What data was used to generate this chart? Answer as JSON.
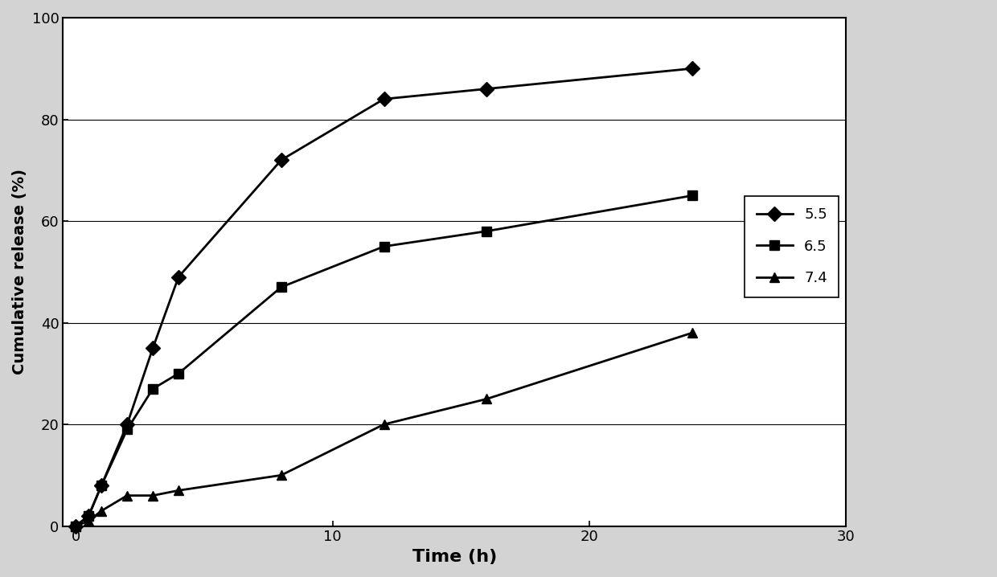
{
  "series": [
    {
      "label": "5.5",
      "marker": "D",
      "x": [
        0,
        0.5,
        1,
        2,
        3,
        4,
        8,
        12,
        16,
        24
      ],
      "y": [
        0,
        2,
        8,
        20,
        35,
        49,
        72,
        84,
        86,
        90
      ]
    },
    {
      "label": "6.5",
      "marker": "s",
      "x": [
        0,
        0.5,
        1,
        2,
        3,
        4,
        8,
        12,
        16,
        24
      ],
      "y": [
        0,
        2,
        8,
        19,
        27,
        30,
        47,
        55,
        58,
        65
      ]
    },
    {
      "label": "7.4",
      "marker": "^",
      "x": [
        0,
        0.5,
        1,
        2,
        3,
        4,
        8,
        12,
        16,
        24
      ],
      "y": [
        0,
        1,
        3,
        6,
        6,
        7,
        10,
        20,
        25,
        38
      ]
    }
  ],
  "xlabel": "Time (h)",
  "ylabel": "Cumulative release (%)",
  "xlim": [
    -0.5,
    30
  ],
  "ylim": [
    0,
    100
  ],
  "xticks": [
    0,
    10,
    20,
    30
  ],
  "yticks": [
    0,
    20,
    40,
    60,
    80,
    100
  ],
  "line_color": "#000000",
  "marker_size": 9,
  "line_width": 2.0,
  "background_color": "#d3d3d3",
  "plot_bg_color": "#ffffff",
  "grid_color": "#000000",
  "xlabel_fontsize": 16,
  "ylabel_fontsize": 14,
  "tick_fontsize": 13,
  "legend_fontsize": 13
}
